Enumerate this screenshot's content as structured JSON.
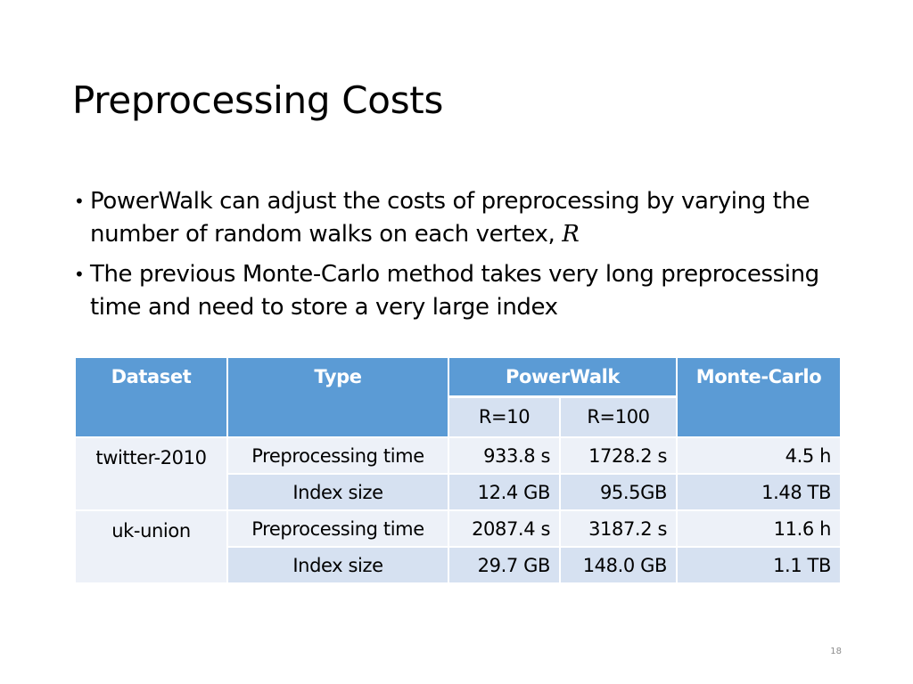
{
  "slide": {
    "title": "Preprocessing Costs",
    "bullets": [
      {
        "marker": "•",
        "text": "PowerWalk can adjust the costs of preprocessing by varying the number of random walks on each vertex, ",
        "variable": "R"
      },
      {
        "marker": "•",
        "text": "The previous Monte-Carlo method takes very long preprocessing time and need to store a very large index"
      }
    ],
    "page_number": "18"
  },
  "table": {
    "headers": {
      "dataset": "Dataset",
      "type": "Type",
      "powerwalk": "PowerWalk",
      "monte_carlo": "Monte-Carlo",
      "r10": "R=10",
      "r100": "R=100"
    },
    "rows": [
      {
        "dataset": "twitter-2010",
        "type": "Preprocessing time",
        "r10": "933.8 s",
        "r100": "1728.2 s",
        "mc": "4.5 h"
      },
      {
        "dataset": "",
        "type": "Index size",
        "r10": "12.4 GB",
        "r100": "95.5GB",
        "mc": "1.48 TB"
      },
      {
        "dataset": "uk-union",
        "type": "Preprocessing time",
        "r10": "2087.4 s",
        "r100": "3187.2 s",
        "mc": "11.6 h"
      },
      {
        "dataset": "",
        "type": "Index size",
        "r10": "29.7 GB",
        "r100": "148.0 GB",
        "mc": "1.1 TB"
      }
    ]
  },
  "colors": {
    "header_bg": "#5b9bd5",
    "row_light": "#edf1f8",
    "row_dark": "#d6e1f1"
  }
}
